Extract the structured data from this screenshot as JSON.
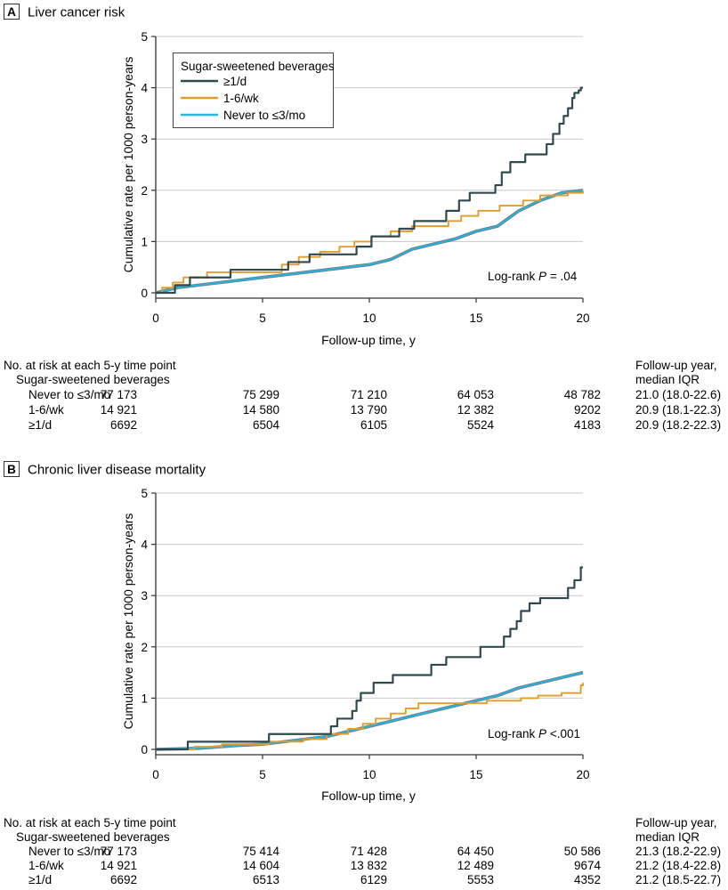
{
  "panels": [
    {
      "label": "A",
      "title": "Liver cancer risk",
      "logrank_prefix": "Log-rank ",
      "logrank_p": "P",
      "logrank_value": " = .04",
      "risk_header_1": "No. at risk at each 5-y time point",
      "risk_header_2": "Sugar-sweetened beverages",
      "followup_header_1": "Follow-up year,",
      "followup_header_2": "median IQR",
      "risk_rows": [
        {
          "label": "Never to ≤3/mo",
          "values": [
            "77 173",
            "75 299",
            "71 210",
            "64 053",
            "48 782"
          ],
          "followup": "21.0 (18.0-22.6)"
        },
        {
          "label": "1-6/wk",
          "values": [
            "14 921",
            "14 580",
            "13 790",
            "12 382",
            "9202"
          ],
          "followup": "20.9 (18.1-22.3)"
        },
        {
          "label": "≥1/d",
          "values": [
            "6692",
            "6504",
            "6105",
            "5524",
            "4183"
          ],
          "followup": "20.9 (18.2-22.3)"
        }
      ]
    },
    {
      "label": "B",
      "title": "Chronic liver disease mortality",
      "logrank_prefix": "Log-rank ",
      "logrank_p": "P",
      "logrank_value": " <.001",
      "risk_header_1": "No. at risk at each 5-y time point",
      "risk_header_2": "Sugar-sweetened beverages",
      "followup_header_1": "Follow-up year,",
      "followup_header_2": "median IQR",
      "risk_rows": [
        {
          "label": "Never to ≤3/mo",
          "values": [
            "77 173",
            "75 414",
            "71 428",
            "64 450",
            "50 586"
          ],
          "followup": "21.3 (18.2-22.9)"
        },
        {
          "label": "1-6/wk",
          "values": [
            "14 921",
            "14 604",
            "13 832",
            "12 489",
            "9674"
          ],
          "followup": "21.2 (18.4-22.8)"
        },
        {
          "label": "≥1/d",
          "values": [
            "6692",
            "6513",
            "6129",
            "5553",
            "4352"
          ],
          "followup": "21.2 (18.5-22.7)"
        }
      ]
    }
  ],
  "legend": {
    "title": "Sugar-sweetened beverages",
    "entries": [
      "≥1/d",
      "1-6/wk",
      "Never to ≤3/mo"
    ]
  },
  "colors": {
    "daily": "#2e4a4f",
    "weekly": "#e39b2b",
    "never": "#25b5dd",
    "never_shadow": "#6d7c86",
    "axis": "#333333"
  },
  "chart_data": [
    {
      "type": "line",
      "title": "Liver cancer risk",
      "xlabel": "Follow-up time, y",
      "ylabel": "Cumulative rate per 1000 person-years",
      "xlim": [
        0,
        20
      ],
      "ylim": [
        0,
        5
      ],
      "xticks": [
        0,
        5,
        10,
        15,
        20
      ],
      "yticks": [
        0,
        1,
        2,
        3,
        4,
        5
      ],
      "legend_position": "top-left",
      "step": true,
      "series": [
        {
          "name": "≥1/d",
          "color_key": "daily",
          "x": [
            0,
            0.9,
            1.6,
            3.5,
            6.2,
            7.2,
            9.4,
            10.1,
            11.4,
            12.1,
            13.6,
            14.2,
            14.7,
            15.9,
            16.2,
            16.6,
            17.3,
            18.3,
            18.6,
            18.9,
            19.1,
            19.3,
            19.5,
            19.6,
            19.8,
            19.9,
            20.0
          ],
          "y": [
            0,
            0.15,
            0.3,
            0.45,
            0.6,
            0.75,
            0.9,
            1.1,
            1.25,
            1.4,
            1.6,
            1.8,
            1.95,
            2.1,
            2.35,
            2.55,
            2.7,
            2.9,
            3.1,
            3.3,
            3.45,
            3.6,
            3.8,
            3.9,
            3.95,
            4.0,
            4.0
          ]
        },
        {
          "name": "1-6/wk",
          "color_key": "weekly",
          "x": [
            0,
            0.3,
            0.8,
            1.3,
            2.4,
            5.9,
            6.7,
            7.7,
            8.6,
            9.3,
            10.1,
            11.0,
            12.0,
            13.7,
            14.3,
            15.1,
            16.1,
            17.2,
            18.0,
            19.3,
            20.0
          ],
          "y": [
            0,
            0.1,
            0.2,
            0.3,
            0.4,
            0.55,
            0.7,
            0.8,
            0.9,
            1.0,
            1.1,
            1.2,
            1.3,
            1.4,
            1.5,
            1.6,
            1.7,
            1.8,
            1.9,
            1.95,
            2.0
          ]
        },
        {
          "name": "Never to ≤3/mo",
          "color_key": "never",
          "x": [
            0,
            1,
            2,
            3,
            4,
            5,
            6,
            7,
            8,
            9,
            10,
            11,
            12,
            13,
            14,
            15,
            16,
            17,
            18,
            19,
            20
          ],
          "y": [
            0,
            0.1,
            0.15,
            0.2,
            0.25,
            0.3,
            0.35,
            0.4,
            0.45,
            0.5,
            0.55,
            0.65,
            0.85,
            0.95,
            1.05,
            1.2,
            1.3,
            1.6,
            1.8,
            1.95,
            2.0
          ]
        }
      ]
    },
    {
      "type": "line",
      "title": "Chronic liver disease mortality",
      "xlabel": "Follow-up time, y",
      "ylabel": "Cumulative rate per 1000 person-years",
      "xlim": [
        0,
        20
      ],
      "ylim": [
        0,
        5
      ],
      "xticks": [
        0,
        5,
        10,
        15,
        20
      ],
      "yticks": [
        0,
        1,
        2,
        3,
        4,
        5
      ],
      "step": true,
      "series": [
        {
          "name": "≥1/d",
          "color_key": "daily",
          "x": [
            0,
            1.5,
            5.3,
            8.2,
            8.5,
            9.2,
            9.4,
            9.6,
            10.2,
            11.1,
            12.9,
            13.6,
            15.2,
            16.3,
            16.6,
            16.9,
            17.1,
            17.5,
            18.0,
            19.3,
            19.6,
            19.9,
            20.0
          ],
          "y": [
            0,
            0.15,
            0.3,
            0.45,
            0.6,
            0.75,
            0.95,
            1.1,
            1.3,
            1.45,
            1.65,
            1.8,
            2.0,
            2.2,
            2.35,
            2.5,
            2.7,
            2.85,
            2.95,
            3.15,
            3.3,
            3.55,
            3.55
          ]
        },
        {
          "name": "1-6/wk",
          "color_key": "weekly",
          "x": [
            0,
            1.8,
            3.1,
            5.3,
            6.9,
            8.0,
            9.0,
            9.7,
            10.3,
            11.0,
            11.7,
            12.3,
            15.5,
            17.1,
            17.9,
            19.0,
            19.9,
            20.0
          ],
          "y": [
            0,
            0.05,
            0.1,
            0.15,
            0.2,
            0.3,
            0.4,
            0.5,
            0.6,
            0.7,
            0.8,
            0.9,
            0.95,
            1.0,
            1.05,
            1.1,
            1.25,
            1.3
          ]
        },
        {
          "name": "Never to ≤3/mo",
          "color_key": "never",
          "x": [
            0,
            2,
            3,
            4,
            5,
            6,
            7,
            8,
            9,
            10,
            11,
            12,
            13,
            14,
            15,
            16,
            17,
            18,
            19,
            20
          ],
          "y": [
            0,
            0.02,
            0.05,
            0.08,
            0.1,
            0.15,
            0.2,
            0.25,
            0.35,
            0.45,
            0.55,
            0.65,
            0.75,
            0.85,
            0.95,
            1.05,
            1.2,
            1.3,
            1.4,
            1.5
          ]
        }
      ]
    }
  ]
}
